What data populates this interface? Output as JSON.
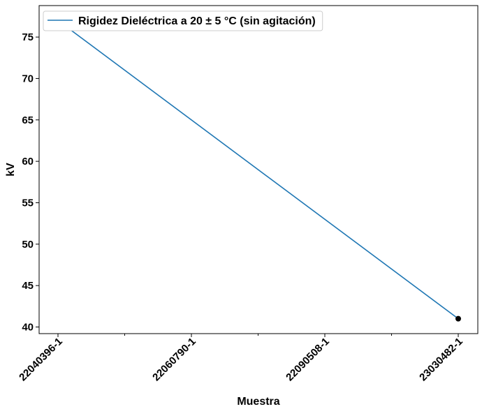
{
  "chart_data": {
    "type": "line",
    "xlabel": "Muestra",
    "ylabel": "kV",
    "categories": [
      "22040396-1",
      "22060790-1",
      "22090508-1",
      "23030482-1"
    ],
    "yticks": [
      40,
      45,
      50,
      55,
      60,
      65,
      70,
      75
    ],
    "ylim": [
      39.2,
      78.8
    ],
    "grid": false,
    "legend_position": "top-left",
    "series": [
      {
        "name": "Rigidez Dieléctrica a 20 ± 5 °C (sin agitación)",
        "color": "#1f77b4",
        "points": [
          {
            "x": "22040396-1",
            "y": 77,
            "color": "#a6c8e0"
          },
          {
            "x": "23030482-1",
            "y": 41,
            "color": "#000000"
          }
        ]
      }
    ]
  }
}
